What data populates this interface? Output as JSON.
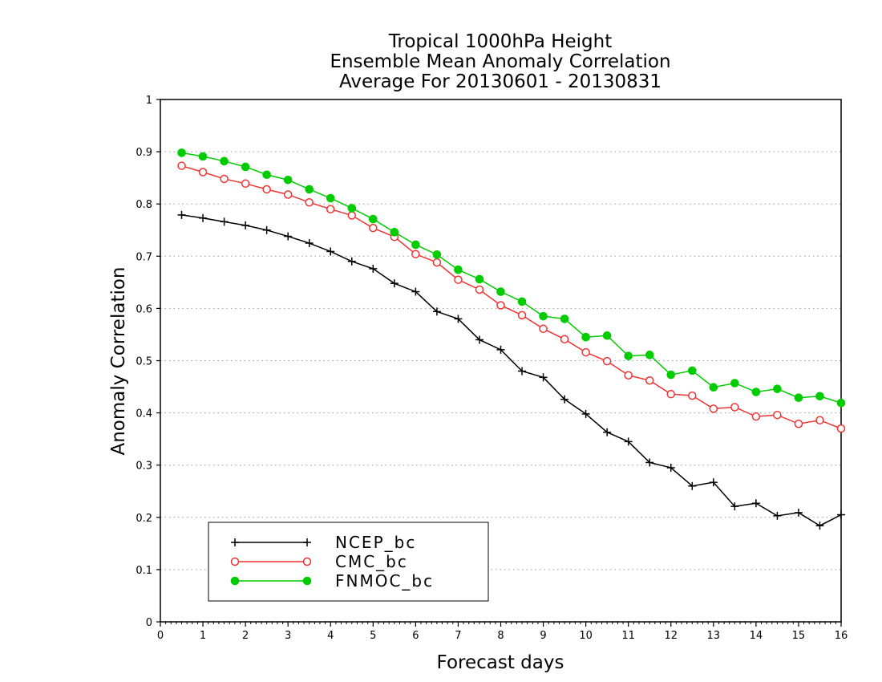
{
  "chart_data": {
    "type": "line",
    "title": [
      "Tropical 1000hPa Height",
      "Ensemble Mean Anomaly Correlation",
      "Average For 20130601 - 20130831"
    ],
    "xlabel": "Forecast days",
    "ylabel": "Anomaly Correlation",
    "xlim": [
      0,
      16
    ],
    "ylim": [
      0,
      1
    ],
    "xticks": [
      "0",
      "1",
      "2",
      "3",
      "4",
      "5",
      "6",
      "7",
      "8",
      "9",
      "10",
      "11",
      "12",
      "13",
      "14",
      "15",
      "16"
    ],
    "yticks": [
      "0",
      "0.1",
      "0.2",
      "0.3",
      "0.4",
      "0.5",
      "0.6",
      "0.7",
      "0.8",
      "0.9",
      "1"
    ],
    "grid": "horizontal dotted",
    "legend_position": "bottom-left",
    "x": [
      0.5,
      1,
      1.5,
      2,
      2.5,
      3,
      3.5,
      4,
      4.5,
      5,
      5.5,
      6,
      6.5,
      7,
      7.5,
      8,
      8.5,
      9,
      9.5,
      10,
      10.5,
      11,
      11.5,
      12,
      12.5,
      13,
      13.5,
      14,
      14.5,
      15,
      15.5,
      16
    ],
    "series": [
      {
        "name": "NCEP_bc",
        "color": "#000000",
        "marker": "plus",
        "values": [
          0.779,
          0.773,
          0.766,
          0.759,
          0.75,
          0.738,
          0.725,
          0.709,
          0.69,
          0.676,
          0.648,
          0.632,
          0.594,
          0.58,
          0.54,
          0.521,
          0.48,
          0.468,
          0.426,
          0.398,
          0.363,
          0.345,
          0.305,
          0.295,
          0.26,
          0.267,
          0.221,
          0.227,
          0.203,
          0.209,
          0.184,
          0.205
        ]
      },
      {
        "name": "CMC_bc",
        "color": "#ee3333",
        "marker": "open-circle",
        "values": [
          0.873,
          0.861,
          0.848,
          0.839,
          0.828,
          0.818,
          0.803,
          0.79,
          0.778,
          0.754,
          0.737,
          0.704,
          0.688,
          0.655,
          0.636,
          0.606,
          0.587,
          0.561,
          0.541,
          0.516,
          0.499,
          0.472,
          0.462,
          0.436,
          0.433,
          0.408,
          0.411,
          0.393,
          0.396,
          0.379,
          0.386,
          0.37
        ]
      },
      {
        "name": "FNMOC_bc",
        "color": "#00cc00",
        "marker": "filled-circle",
        "values": [
          0.898,
          0.891,
          0.882,
          0.871,
          0.856,
          0.846,
          0.828,
          0.811,
          0.792,
          0.771,
          0.746,
          0.722,
          0.703,
          0.674,
          0.656,
          0.632,
          0.613,
          0.585,
          0.58,
          0.545,
          0.548,
          0.509,
          0.511,
          0.473,
          0.481,
          0.449,
          0.457,
          0.44,
          0.446,
          0.429,
          0.432,
          0.419
        ]
      }
    ]
  }
}
